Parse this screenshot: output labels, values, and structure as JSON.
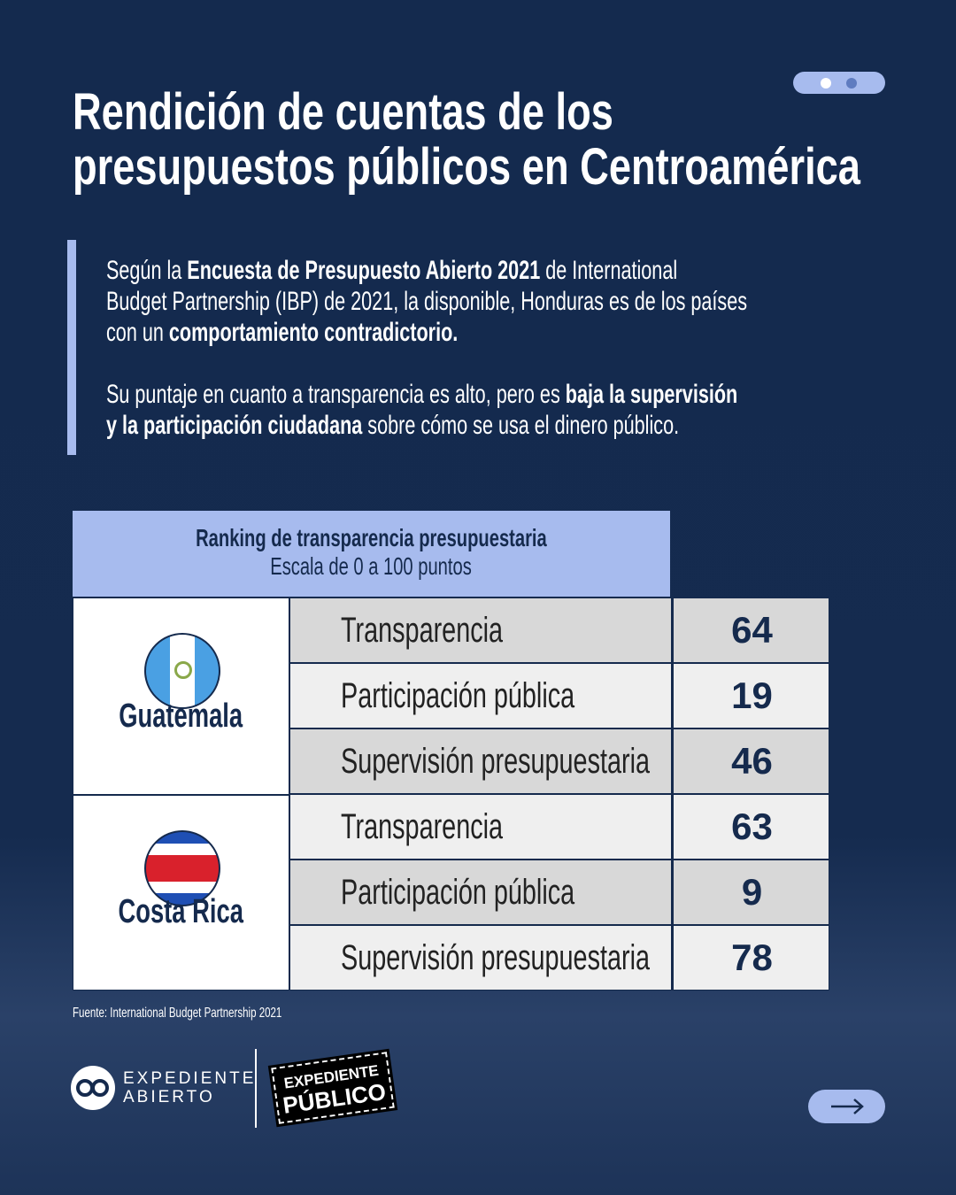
{
  "title": {
    "line1": "Rendición de cuentas de los",
    "line2": "presupuestos públicos en Centroamérica"
  },
  "intro": {
    "p1_a": "Según la ",
    "p1_b": "Encuesta de Presupuesto Abierto 2021",
    "p1_c": " de International",
    "p1_d": "Budget Partnership (IBP) de 2021, la disponible, Honduras es de los países",
    "p1_e": "con un ",
    "p1_f": "comportamiento contradictorio.",
    "p2_a": "Su puntaje en cuanto a transparencia es alto, pero es ",
    "p2_b": "baja la supervisión",
    "p2_c": "y la participación ciudadana",
    "p2_d": " sobre cómo se usa el dinero público."
  },
  "table": {
    "title": "Ranking de transparencia presupuestaria",
    "subtitle": "Escala de 0 a 100 puntos",
    "countries": [
      {
        "name": "Guatemala",
        "rows": [
          {
            "label": "Transparencia",
            "value": "64"
          },
          {
            "label": "Participación pública",
            "value": "19"
          },
          {
            "label": "Supervisión presupuestaria",
            "value": "46"
          }
        ]
      },
      {
        "name": "Costa Rica",
        "rows": [
          {
            "label": "Transparencia",
            "value": "63"
          },
          {
            "label": "Participación pública",
            "value": "9"
          },
          {
            "label": "Supervisión presupuestaria",
            "value": "78"
          }
        ]
      }
    ]
  },
  "source": "Fuente: International Budget Partnership 2021",
  "logos": {
    "ea_line1": "EXPEDIENTE",
    "ea_line2": "ABIERTO",
    "ep_line1": "EXPEDIENTE",
    "ep_line2": "PÚBLICO"
  },
  "colors": {
    "navy": "#152a4d",
    "accent": "#a7bbee"
  }
}
